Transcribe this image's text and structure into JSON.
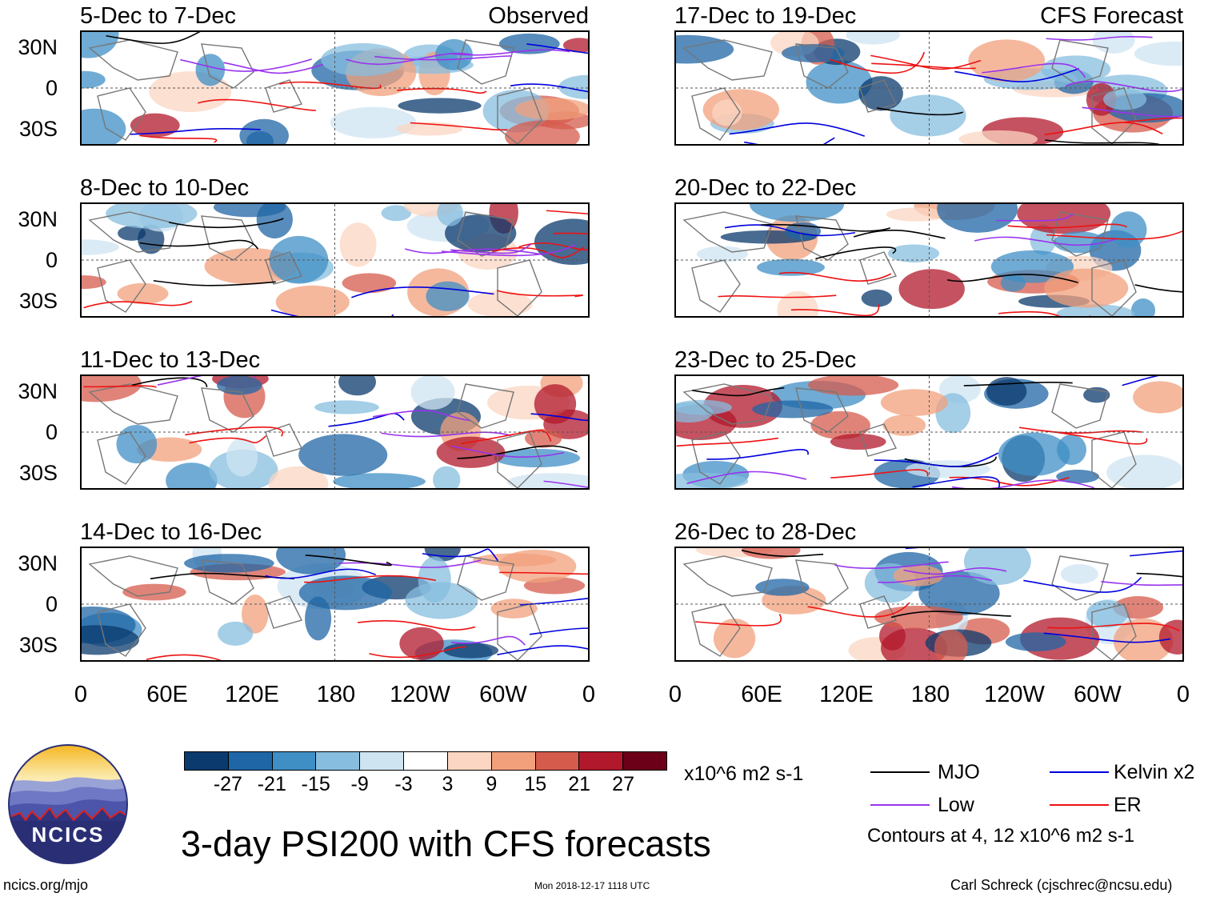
{
  "panels_left": [
    {
      "title": "5-Dec to 7-Dec",
      "tag": "Observed"
    },
    {
      "title": "8-Dec to 10-Dec",
      "tag": ""
    },
    {
      "title": "11-Dec to 13-Dec",
      "tag": ""
    },
    {
      "title": "14-Dec to 16-Dec",
      "tag": ""
    }
  ],
  "panels_right": [
    {
      "title": "17-Dec to 19-Dec",
      "tag": "CFS Forecast"
    },
    {
      "title": "20-Dec to 22-Dec",
      "tag": ""
    },
    {
      "title": "23-Dec to 25-Dec",
      "tag": ""
    },
    {
      "title": "26-Dec to 28-Dec",
      "tag": ""
    }
  ],
  "lat_labels": [
    "30N",
    "0",
    "30S"
  ],
  "lon_labels": [
    "0",
    "60E",
    "120E",
    "180",
    "120W",
    "60W",
    "0"
  ],
  "colorbar": {
    "ticks": [
      "-27",
      "-21",
      "-15",
      "-9",
      "-3",
      "3",
      "9",
      "15",
      "21",
      "27"
    ],
    "colors": [
      "#0b3a6e",
      "#1f66a6",
      "#3f8fc5",
      "#87bedf",
      "#cfe4f1",
      "#ffffff",
      "#fbd6c2",
      "#f2a07c",
      "#d55b4c",
      "#b2182b",
      "#6b0018"
    ],
    "units": "x10^6 m2 s-1"
  },
  "legend": {
    "mjo": {
      "label": "MJO",
      "color": "#000000"
    },
    "kelvin": {
      "label": "Kelvin x2",
      "color": "#0000dd"
    },
    "low": {
      "label": "Low",
      "color": "#9933ee"
    },
    "er": {
      "label": "ER",
      "color": "#ee1111"
    },
    "contours_note": "Contours at 4, 12 x10^6 m2 s-1"
  },
  "main_title": "3-day PSI200 with CFS forecasts",
  "logo": {
    "text": "NCICS"
  },
  "footer": {
    "url": "ncics.org/mjo",
    "timestamp": "Mon 2018-12-17 1118 UTC",
    "author": "Carl Schreck (cjschrec@ncsu.edu)"
  }
}
